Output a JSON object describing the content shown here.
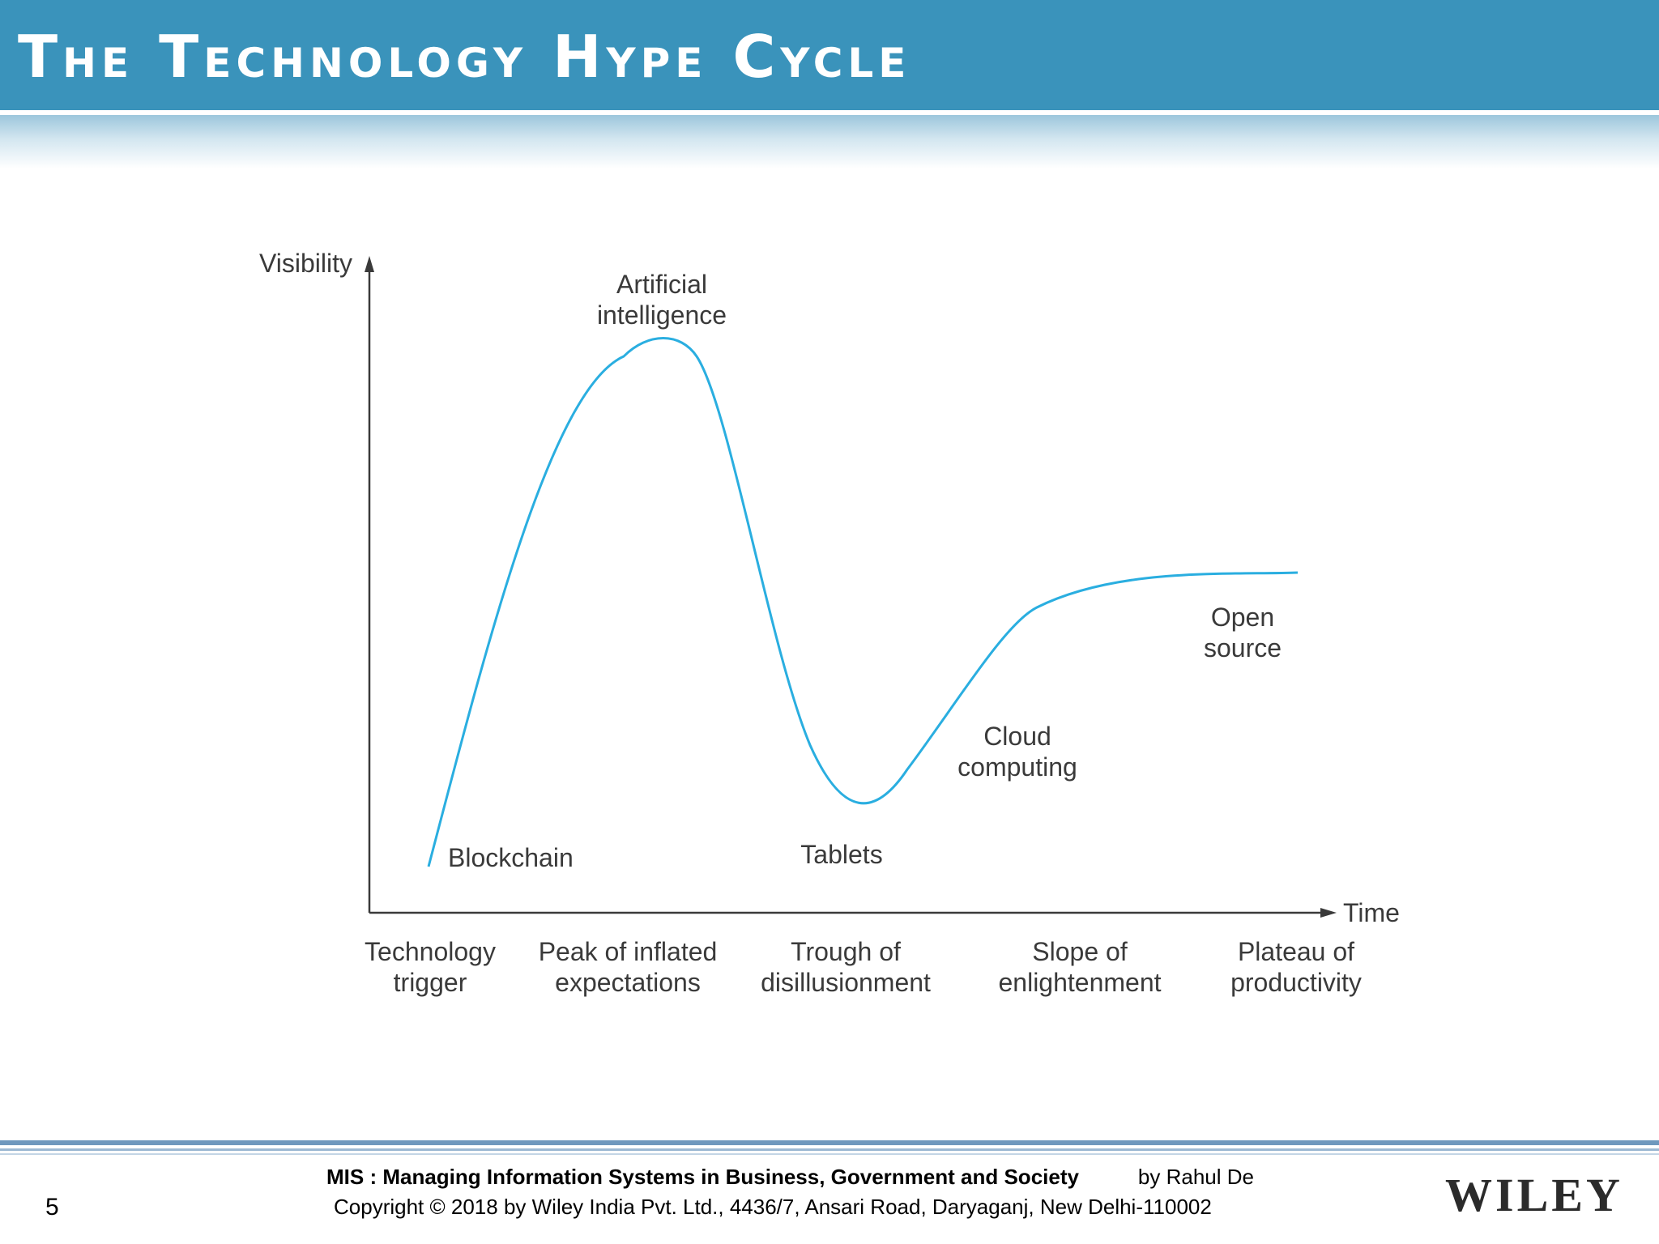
{
  "header": {
    "title": "The Technology Hype Cycle",
    "bar_color": "#3a93bb"
  },
  "diagram": {
    "y_axis_label": "Visibility",
    "x_axis_label": "Time",
    "curve_color": "#2aaee0",
    "curve_points": [
      [
        "Blockchain",
        "Technology trigger"
      ],
      [
        "Artificial intelligence",
        "Peak of inflated expectations"
      ],
      [
        "Tablets",
        "Trough of disillusionment"
      ],
      [
        "Cloud computing",
        "Slope of enlightenment"
      ],
      [
        "Open source",
        "Plateau of productivity"
      ]
    ],
    "technologies": {
      "ai_line1": "Artificial",
      "ai_line2": "intelligence",
      "blockchain": "Blockchain",
      "tablets": "Tablets",
      "cloud_line1": "Cloud",
      "cloud_line2": "computing",
      "open_line1": "Open",
      "open_line2": "source"
    },
    "phases": {
      "trigger_line1": "Technology",
      "trigger_line2": "trigger",
      "peak_line1": "Peak of inflated",
      "peak_line2": "expectations",
      "trough_line1": "Trough of",
      "trough_line2": "disillusionment",
      "slope_line1": "Slope of",
      "slope_line2": "enlightenment",
      "plateau_line1": "Plateau of",
      "plateau_line2": "productivity"
    }
  },
  "footer": {
    "page_number": "5",
    "book_title": "MIS : Managing Information Systems in Business, Government and Society",
    "author": "by Rahul De",
    "copyright": "Copyright © 2018 by Wiley India Pvt. Ltd., 4436/7, Ansari Road, Daryaganj, New Delhi-110002",
    "publisher": "WILEY"
  }
}
